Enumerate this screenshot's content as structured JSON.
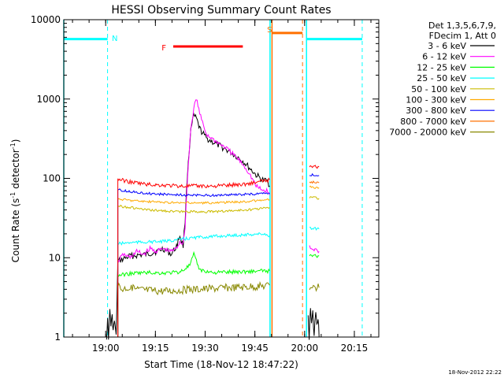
{
  "chart_data": {
    "type": "line",
    "title": "HESSI Observing Summary Count Rates",
    "ylabel_main": "Count Rate (s",
    "ylabel_sup1": "-1",
    "ylabel_mid": " detector",
    "ylabel_sup2": "-1",
    "ylabel_end": ")",
    "xlabel": "Start Time (18-Nov-12 18:47:22)",
    "ylim": [
      1,
      10000
    ],
    "yscale": "log",
    "xlim_minutes": [
      0,
      95
    ],
    "y_ticks": [
      {
        "value": 1,
        "label": "1"
      },
      {
        "value": 10,
        "label": "10"
      },
      {
        "value": 100,
        "label": "100"
      },
      {
        "value": 1000,
        "label": "1000"
      },
      {
        "value": 10000,
        "label": "10000"
      }
    ],
    "x_ticks": [
      {
        "minute": 12.63,
        "label": "19:00"
      },
      {
        "minute": 27.63,
        "label": "19:15"
      },
      {
        "minute": 42.63,
        "label": "19:30"
      },
      {
        "minute": 57.63,
        "label": "19:45"
      },
      {
        "minute": 72.63,
        "label": "20:00"
      },
      {
        "minute": 87.63,
        "label": "20:15"
      }
    ],
    "legend_header": [
      "Det 1,3,5,6,7,9,",
      "FDecim 1, Att 0"
    ],
    "series": [
      {
        "name": "3 - 6 keV",
        "color": "#000000",
        "values": [
          [
            12.9,
            1
          ],
          [
            13.2,
            1.6
          ],
          [
            13.5,
            1
          ],
          [
            13.9,
            2.2
          ],
          [
            14.2,
            1.4
          ],
          [
            14.6,
            1.8
          ],
          [
            14.9,
            1.2
          ],
          [
            15.3,
            1.6
          ],
          [
            15.8,
            1
          ],
          [
            16.3,
            9
          ],
          [
            20,
            10.5
          ],
          [
            25,
            11
          ],
          [
            28,
            12
          ],
          [
            30,
            13
          ],
          [
            32.5,
            11
          ],
          [
            34,
            14
          ],
          [
            35,
            19
          ],
          [
            36,
            14
          ],
          [
            36.6,
            30
          ],
          [
            37.3,
            120
          ],
          [
            38.3,
            400
          ],
          [
            39.2,
            620
          ],
          [
            40,
            560
          ],
          [
            41,
            420
          ],
          [
            43,
            320
          ],
          [
            46,
            270
          ],
          [
            49,
            230
          ],
          [
            52,
            190
          ],
          [
            54,
            165
          ],
          [
            56,
            135
          ],
          [
            58,
            110
          ],
          [
            60,
            95
          ],
          [
            61.5,
            92
          ],
          [
            62.1,
            80
          ]
        ],
        "segments_after": [
          [
            73.7,
            2
          ],
          [
            74,
            1
          ],
          [
            74.4,
            2.5
          ],
          [
            74.7,
            1.5
          ],
          [
            75.1,
            2
          ],
          [
            75.5,
            1
          ],
          [
            76,
            2.2
          ],
          [
            76.3,
            1.4
          ],
          [
            76.7,
            1.8
          ],
          [
            77,
            1
          ]
        ]
      },
      {
        "name": "6 - 12 keV",
        "color": "#ff00ff",
        "values": [
          [
            16.3,
            9
          ],
          [
            18,
            11
          ],
          [
            20,
            10
          ],
          [
            22,
            12
          ],
          [
            24,
            11
          ],
          [
            26,
            13
          ],
          [
            28,
            12
          ],
          [
            30,
            13
          ],
          [
            32,
            12
          ],
          [
            34,
            13
          ],
          [
            35,
            16
          ],
          [
            36,
            15
          ],
          [
            36.6,
            25
          ],
          [
            37.3,
            100
          ],
          [
            38.3,
            430
          ],
          [
            39.5,
            900
          ],
          [
            40.2,
            960
          ],
          [
            41,
            650
          ],
          [
            43,
            360
          ],
          [
            46,
            290
          ],
          [
            49,
            240
          ],
          [
            52,
            185
          ],
          [
            54,
            150
          ],
          [
            56,
            115
          ],
          [
            58,
            80
          ],
          [
            60,
            70
          ],
          [
            61.5,
            70
          ],
          [
            62.1,
            62
          ]
        ],
        "segments_after": [
          [
            74.1,
            14
          ],
          [
            75,
            12
          ],
          [
            76,
            13
          ],
          [
            77,
            12
          ]
        ]
      },
      {
        "name": "12 - 25 keV",
        "color": "#00ff00",
        "values": [
          [
            16.3,
            6
          ],
          [
            20,
            6.3
          ],
          [
            25,
            6.5
          ],
          [
            30,
            6.4
          ],
          [
            35,
            6.6
          ],
          [
            38,
            8
          ],
          [
            39.2,
            11
          ],
          [
            40,
            9
          ],
          [
            41,
            7
          ],
          [
            45,
            6.5
          ],
          [
            50,
            6.6
          ],
          [
            55,
            6.7
          ],
          [
            60,
            6.8
          ],
          [
            62.1,
            6.8
          ]
        ],
        "segments_after": [
          [
            74.1,
            11
          ],
          [
            77,
            10.5
          ]
        ]
      },
      {
        "name": "25 - 50 keV",
        "color": "#00ffff",
        "values": [
          [
            16.3,
            15
          ],
          [
            20,
            15.5
          ],
          [
            25,
            15.8
          ],
          [
            30,
            16
          ],
          [
            35,
            17
          ],
          [
            40,
            18
          ],
          [
            45,
            18.5
          ],
          [
            50,
            19
          ],
          [
            55,
            19.5
          ],
          [
            60,
            20
          ],
          [
            62.1,
            19
          ]
        ],
        "segments_after": [
          [
            74.1,
            24
          ],
          [
            77,
            23
          ]
        ]
      },
      {
        "name": "50 - 100 keV",
        "color": "#ccbb00",
        "values": [
          [
            16.3,
            45
          ],
          [
            20,
            43
          ],
          [
            25,
            40
          ],
          [
            30,
            39
          ],
          [
            35,
            38
          ],
          [
            40,
            38
          ],
          [
            45,
            38
          ],
          [
            50,
            39
          ],
          [
            55,
            40
          ],
          [
            60,
            42
          ],
          [
            62.1,
            43
          ]
        ],
        "segments_after": [
          [
            74.1,
            58
          ],
          [
            77,
            56
          ]
        ]
      },
      {
        "name": "100 - 300 keV",
        "color": "#ffaa00",
        "values": [
          [
            16.3,
            55
          ],
          [
            20,
            53
          ],
          [
            25,
            51
          ],
          [
            30,
            50
          ],
          [
            35,
            49
          ],
          [
            40,
            49
          ],
          [
            45,
            49
          ],
          [
            50,
            50
          ],
          [
            55,
            51
          ],
          [
            60,
            53
          ],
          [
            62.1,
            54
          ]
        ],
        "segments_after": [
          [
            74.1,
            78
          ],
          [
            77,
            76
          ]
        ]
      },
      {
        "name": "300 - 800 keV",
        "color": "#0000ff",
        "values": [
          [
            16.3,
            72
          ],
          [
            20,
            68
          ],
          [
            25,
            65
          ],
          [
            30,
            63
          ],
          [
            35,
            62
          ],
          [
            40,
            61
          ],
          [
            45,
            61
          ],
          [
            50,
            62
          ],
          [
            55,
            63
          ],
          [
            60,
            64
          ],
          [
            62.1,
            65
          ]
        ],
        "segments_after": [
          [
            74.1,
            112
          ],
          [
            77,
            108
          ]
        ]
      },
      {
        "name": "800 - 7000 keV",
        "color": "#ff7000",
        "values": [],
        "segments_after": [
          [
            74.1,
            90
          ],
          [
            77,
            88
          ]
        ]
      },
      {
        "name": "7000 - 20000 keV",
        "color": "#888800",
        "values": [
          [
            16.3,
            4.6
          ],
          [
            17.5,
            4
          ],
          [
            19,
            4.2
          ],
          [
            22,
            4
          ],
          [
            25,
            3.9
          ],
          [
            30,
            3.8
          ],
          [
            35,
            3.9
          ],
          [
            40,
            4
          ],
          [
            45,
            4.1
          ],
          [
            50,
            4.2
          ],
          [
            55,
            4.3
          ],
          [
            60,
            4.4
          ],
          [
            62.1,
            4.5
          ]
        ],
        "segments_after": [
          [
            74.1,
            4.4
          ],
          [
            77,
            4.2
          ]
        ]
      }
    ],
    "red_trace": {
      "color": "#ff0000",
      "values": [
        [
          16.3,
          98
        ],
        [
          20,
          90
        ],
        [
          25,
          84
        ],
        [
          30,
          82
        ],
        [
          35,
          80
        ],
        [
          40,
          80
        ],
        [
          45,
          80
        ],
        [
          50,
          82
        ],
        [
          55,
          85
        ],
        [
          60,
          92
        ],
        [
          62.1,
          96
        ]
      ],
      "segments_after": [
        [
          74.1,
          145
        ],
        [
          77,
          140
        ]
      ]
    },
    "annotations": [
      {
        "label": "N",
        "color": "#00ffff"
      },
      {
        "label": "F",
        "color": "#ff0000"
      },
      {
        "label": "S",
        "color": "#ff7000"
      }
    ],
    "timestamp": "18-Nov-2012 22:22"
  }
}
